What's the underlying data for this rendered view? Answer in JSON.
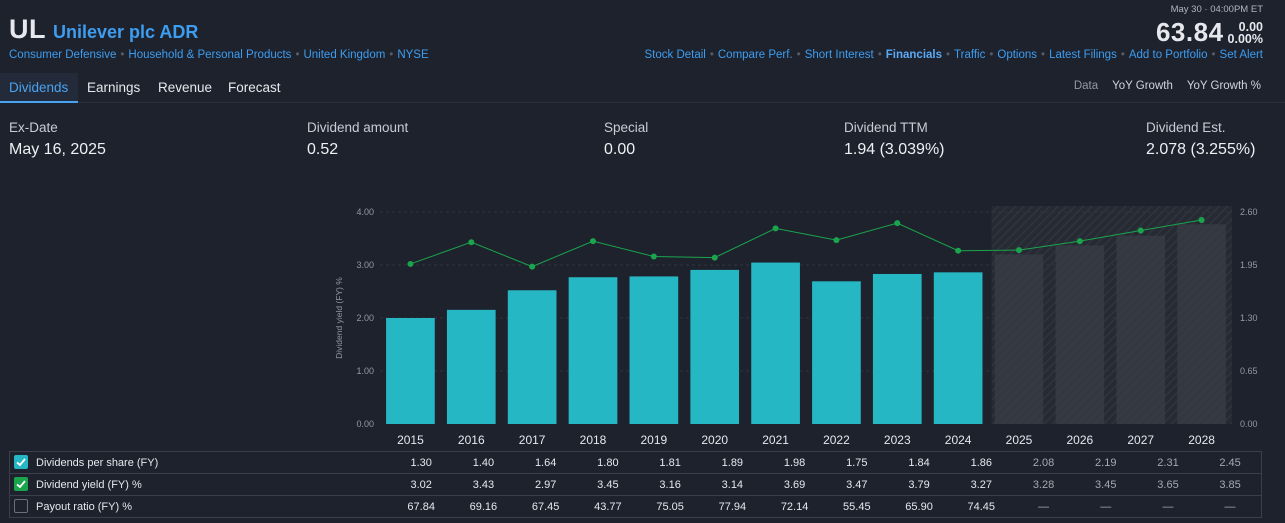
{
  "header": {
    "ticker": "UL",
    "company": "Unilever plc ADR",
    "sector_links": [
      "Consumer Defensive",
      "Household & Personal Products",
      "United Kingdom",
      "NYSE"
    ],
    "price_date": "May 30 · 04:00PM ET",
    "price": "63.84",
    "change": "0.00",
    "change_pct": "0.00%",
    "nav_links": [
      "Stock Detail",
      "Compare Perf.",
      "Short Interest",
      "Financials",
      "Traffic",
      "Options",
      "Latest Filings",
      "Add to Portfolio",
      "Set Alert"
    ],
    "active_nav": "Financials"
  },
  "tabs": [
    "Dividends",
    "Earnings",
    "Revenue",
    "Forecast"
  ],
  "active_tab": "Dividends",
  "view_toggles": [
    "Data",
    "YoY Growth",
    "YoY Growth %"
  ],
  "stats": [
    {
      "label": "Ex-Date",
      "value": "May 16, 2025"
    },
    {
      "label": "Dividend amount",
      "value": "0.52"
    },
    {
      "label": "Special",
      "value": "0.00"
    },
    {
      "label": "Dividend TTM",
      "value": "1.94 (3.039%)"
    },
    {
      "label": "Dividend Est.",
      "value": "2.078 (3.255%)"
    }
  ],
  "chart_data": {
    "type": "bar",
    "categories": [
      "2015",
      "2016",
      "2017",
      "2018",
      "2019",
      "2020",
      "2021",
      "2022",
      "2023",
      "2024",
      "2025",
      "2026",
      "2027",
      "2028"
    ],
    "estimate_from_index": 10,
    "ylabel": "Dividend yield (FY) %",
    "left_axis": {
      "ticks": [
        "0.00",
        "1.00",
        "2.00",
        "3.00",
        "4.00"
      ],
      "range": [
        0,
        4
      ]
    },
    "right_axis": {
      "ticks": [
        "0.00",
        "0.65",
        "1.30",
        "1.95",
        "2.60"
      ],
      "range": [
        0,
        2.6
      ]
    },
    "series": [
      {
        "name": "Dividends per share (FY)",
        "type": "bar",
        "axis": "right",
        "color": "#26b7c4",
        "values": [
          1.3,
          1.4,
          1.64,
          1.8,
          1.81,
          1.89,
          1.98,
          1.75,
          1.84,
          1.86,
          2.08,
          2.19,
          2.31,
          2.45
        ]
      },
      {
        "name": "Dividend yield (FY) %",
        "type": "line",
        "axis": "left",
        "color": "#1aa54d",
        "values": [
          3.02,
          3.43,
          2.97,
          3.45,
          3.16,
          3.14,
          3.69,
          3.47,
          3.79,
          3.27,
          3.28,
          3.45,
          3.65,
          3.85
        ]
      }
    ]
  },
  "table": {
    "rows": [
      {
        "label": "Dividends per share (FY)",
        "checkbox": "teal",
        "values": [
          "1.30",
          "1.40",
          "1.64",
          "1.80",
          "1.81",
          "1.89",
          "1.98",
          "1.75",
          "1.84",
          "1.86",
          "2.08",
          "2.19",
          "2.31",
          "2.45"
        ]
      },
      {
        "label": "Dividend yield (FY) %",
        "checkbox": "green",
        "values": [
          "3.02",
          "3.43",
          "2.97",
          "3.45",
          "3.16",
          "3.14",
          "3.69",
          "3.47",
          "3.79",
          "3.27",
          "3.28",
          "3.45",
          "3.65",
          "3.85"
        ]
      },
      {
        "label": "Payout ratio (FY) %",
        "checkbox": "empty",
        "values": [
          "67.84",
          "69.16",
          "67.45",
          "43.77",
          "75.05",
          "77.94",
          "72.14",
          "55.45",
          "65.90",
          "74.45",
          "—",
          "—",
          "—",
          "—"
        ]
      }
    ]
  }
}
